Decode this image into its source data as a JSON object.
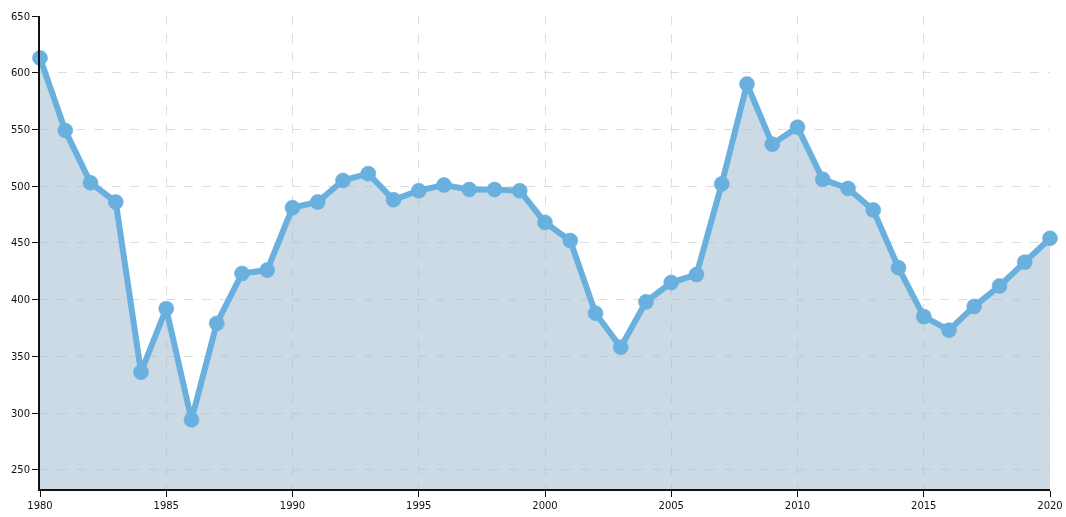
{
  "chart_data": {
    "type": "area",
    "marker": "circle",
    "grid": true,
    "x": [
      1980,
      1981,
      1982,
      1983,
      1984,
      1985,
      1986,
      1987,
      1988,
      1989,
      1990,
      1991,
      1992,
      1993,
      1994,
      1995,
      1996,
      1997,
      1998,
      1999,
      2000,
      2001,
      2002,
      2003,
      2004,
      2005,
      2006,
      2007,
      2008,
      2009,
      2010,
      2011,
      2012,
      2013,
      2014,
      2015,
      2016,
      2017,
      2018,
      2019,
      2020
    ],
    "series": [
      {
        "color": "#6ab0de",
        "values": [
          613,
          549,
          503,
          486,
          336,
          392,
          294,
          379,
          423,
          426,
          481,
          486,
          505,
          511,
          488,
          496,
          501,
          497,
          497,
          496,
          468,
          452,
          388,
          358,
          398,
          415,
          422,
          502,
          590,
          537,
          552,
          506,
          498,
          479,
          428,
          385,
          373,
          394,
          412,
          433,
          454
        ]
      }
    ],
    "xlim": [
      1980,
      2020
    ],
    "xticks": [
      1980,
      1985,
      1990,
      1995,
      2000,
      2005,
      2010,
      2015,
      2020
    ],
    "ylim": [
      233,
      650
    ],
    "yticks": [
      250,
      300,
      350,
      400,
      450,
      500,
      550,
      600,
      650
    ]
  }
}
